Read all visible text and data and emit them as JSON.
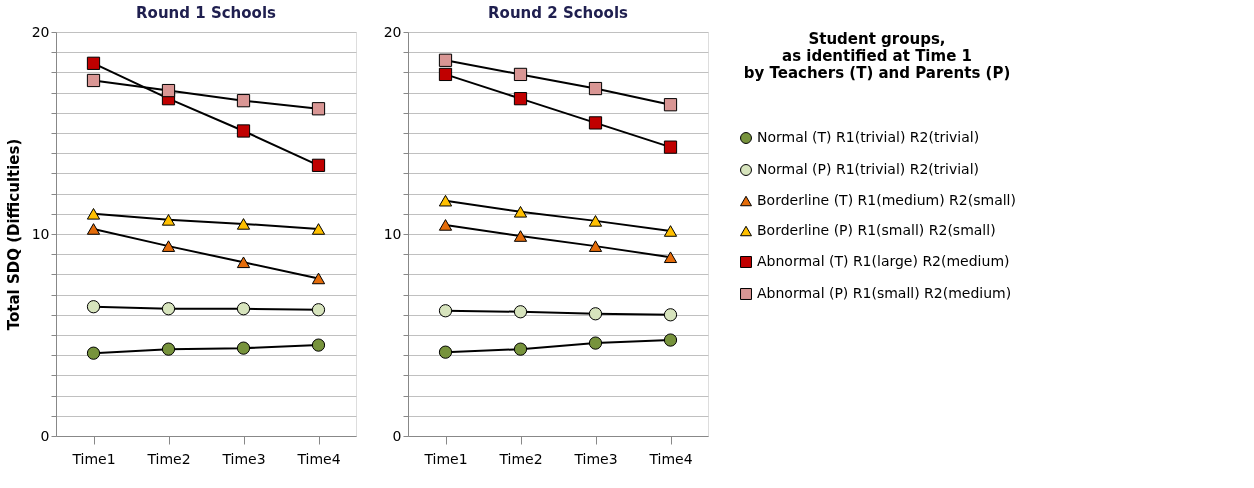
{
  "chart_data": [
    {
      "type": "line",
      "title": "Round 1 Schools",
      "ylabel": "Total  SDQ (Difficulties)",
      "categories": [
        "Time1",
        "Time2",
        "Time3",
        "Time4"
      ],
      "ylim": [
        0,
        20
      ],
      "yticks": [
        0,
        {
          "value": 1,
          "label": null
        },
        {
          "value": 2,
          "label": null
        },
        {
          "value": 3,
          "label": null
        },
        {
          "value": 4,
          "label": null
        },
        {
          "value": 5,
          "label": null
        },
        {
          "value": 6,
          "label": null
        },
        {
          "value": 7,
          "label": null
        },
        {
          "value": 8,
          "label": null
        },
        {
          "value": 9,
          "label": null
        },
        10,
        {
          "value": 11,
          "label": null
        },
        {
          "value": 12,
          "label": null
        },
        {
          "value": 13,
          "label": null
        },
        {
          "value": 14,
          "label": null
        },
        {
          "value": 15,
          "label": null
        },
        {
          "value": 16,
          "label": null
        },
        {
          "value": 17,
          "label": null
        },
        {
          "value": 18,
          "label": null
        },
        {
          "value": 19,
          "label": null
        },
        20
      ],
      "grid": "y",
      "legend": "right",
      "line_style": "solid",
      "series": [
        {
          "name": "Normal (T) R1(trivial) R2(trivial)",
          "color": "#77933c",
          "marker": "circle",
          "values": [
            4.1,
            4.3,
            4.35,
            4.5
          ]
        },
        {
          "name": "Normal (P) R1(trivial) R2(trivial)",
          "color": "#d7e4bd",
          "marker": "circle",
          "values": [
            6.4,
            6.3,
            6.3,
            6.25
          ]
        },
        {
          "name": "Borderline (T) R1(medium) R2(small)",
          "color": "#e46c0a",
          "marker": "triangle",
          "values": [
            10.25,
            9.4,
            8.6,
            7.8
          ]
        },
        {
          "name": "Borderline (P) R1(small) R2(small)",
          "color": "#ffc000",
          "marker": "triangle",
          "values": [
            11.0,
            10.7,
            10.5,
            10.25
          ]
        },
        {
          "name": "Abnormal (T) R1(large) R2(medium)",
          "color": "#c00000",
          "marker": "square",
          "values": [
            18.45,
            16.7,
            15.1,
            13.4
          ]
        },
        {
          "name": "Abnormal (P) R1(small) R2(medium)",
          "color": "#d99694",
          "marker": "square",
          "values": [
            17.6,
            17.1,
            16.6,
            16.2
          ]
        }
      ]
    },
    {
      "type": "line",
      "title": "Round 2 Schools",
      "legend_title": "Student groups,\nas identified at Time 1\nby Teachers (T) and Parents (P)",
      "categories": [
        "Time1",
        "Time2",
        "Time3",
        "Time4"
      ],
      "ylim": [
        0,
        20
      ],
      "yticks": [
        0,
        {
          "value": 1,
          "label": null
        },
        {
          "value": 2,
          "label": null
        },
        {
          "value": 3,
          "label": null
        },
        {
          "value": 4,
          "label": null
        },
        {
          "value": 5,
          "label": null
        },
        {
          "value": 6,
          "label": null
        },
        {
          "value": 7,
          "label": null
        },
        {
          "value": 8,
          "label": null
        },
        {
          "value": 9,
          "label": null
        },
        10,
        {
          "value": 11,
          "label": null
        },
        {
          "value": 12,
          "label": null
        },
        {
          "value": 13,
          "label": null
        },
        {
          "value": 14,
          "label": null
        },
        {
          "value": 15,
          "label": null
        },
        {
          "value": 16,
          "label": null
        },
        {
          "value": 17,
          "label": null
        },
        {
          "value": 18,
          "label": null
        },
        {
          "value": 19,
          "label": null
        },
        20
      ],
      "grid": "y",
      "legend": "right",
      "line_style": "solid",
      "series": [
        {
          "name": "Normal (T) R1(trivial) R2(trivial)",
          "color": "#77933c",
          "marker": "circle",
          "values": [
            4.15,
            4.3,
            4.6,
            4.75
          ]
        },
        {
          "name": "Normal (P) R1(trivial) R2(trivial)",
          "color": "#d7e4bd",
          "marker": "circle",
          "values": [
            6.2,
            6.15,
            6.05,
            6.0
          ]
        },
        {
          "name": "Borderline (T) R1(medium) R2(small)",
          "color": "#e46c0a",
          "marker": "triangle",
          "values": [
            10.45,
            9.9,
            9.4,
            8.85
          ]
        },
        {
          "name": "Borderline (P) R1(small) R2(small)",
          "color": "#ffc000",
          "marker": "triangle",
          "values": [
            11.65,
            11.1,
            10.65,
            10.15
          ]
        },
        {
          "name": "Abnormal (T) R1(large) R2(medium)",
          "color": "#c00000",
          "marker": "square",
          "values": [
            17.9,
            16.7,
            15.5,
            14.3
          ]
        },
        {
          "name": "Abnormal (P) R1(small) R2(medium)",
          "color": "#d99694",
          "marker": "square",
          "values": [
            18.6,
            17.9,
            17.2,
            16.4
          ]
        }
      ]
    }
  ]
}
